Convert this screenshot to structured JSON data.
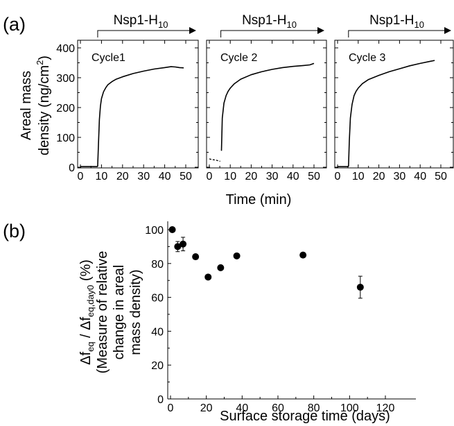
{
  "panel_labels": [
    "(a)",
    "(b)"
  ],
  "chart_data": [
    {
      "type": "line",
      "panel": "(a)",
      "xlabel": "Time (min)",
      "ylabel_line1": "Areal mass",
      "ylabel_line2_base": "density (ng/cm",
      "ylabel_line2_sup": "2",
      "ylabel_line2_end": ")",
      "ylim": [
        0,
        400
      ],
      "yticks": [
        "0",
        "100",
        "200",
        "300",
        "400"
      ],
      "xlim": [
        0,
        50
      ],
      "xticks": [
        "0",
        "10",
        "20",
        "30",
        "40",
        "50"
      ],
      "injection_label": {
        "base": "Nsp1-H",
        "sub": "10"
      },
      "subplots": [
        {
          "name": "Cycle1",
          "baseline": [
            [
              0,
              2
            ],
            [
              8.2,
              2
            ]
          ],
          "curve": [
            [
              8.2,
              2
            ],
            [
              8.6,
              80
            ],
            [
              9.0,
              160
            ],
            [
              9.5,
              205
            ],
            [
              10,
              230
            ],
            [
              11,
              253
            ],
            [
              12,
              266
            ],
            [
              13,
              276
            ],
            [
              15,
              287
            ],
            [
              17,
              295
            ],
            [
              20,
              303
            ],
            [
              25,
              314
            ],
            [
              30,
              322
            ],
            [
              35,
              329
            ],
            [
              40,
              334
            ],
            [
              43,
              337
            ],
            [
              45,
              336
            ],
            [
              47,
              334
            ],
            [
              49,
              333
            ]
          ]
        },
        {
          "name": "Cycle 2",
          "baseline": [
            [
              0,
              28
            ],
            [
              1,
              26
            ],
            [
              2,
              25
            ],
            [
              3,
              24
            ],
            [
              4,
              22
            ],
            [
              5,
              20
            ],
            [
              5.2,
              20
            ]
          ],
          "curve": [
            [
              5.8,
              55
            ],
            [
              6.2,
              165
            ],
            [
              7,
              215
            ],
            [
              8,
              240
            ],
            [
              9,
              255
            ],
            [
              10,
              265
            ],
            [
              12,
              280
            ],
            [
              15,
              295
            ],
            [
              20,
              310
            ],
            [
              25,
              320
            ],
            [
              30,
              328
            ],
            [
              35,
              334
            ],
            [
              40,
              338
            ],
            [
              45,
              341
            ],
            [
              48,
              343
            ],
            [
              50,
              348
            ]
          ]
        },
        {
          "name": "Cycle 3",
          "baseline": [
            [
              0,
              2
            ],
            [
              5.3,
              2
            ]
          ],
          "curve": [
            [
              5.3,
              2
            ],
            [
              5.7,
              90
            ],
            [
              6.2,
              165
            ],
            [
              7,
              210
            ],
            [
              8,
              240
            ],
            [
              9,
              255
            ],
            [
              10,
              265
            ],
            [
              12,
              280
            ],
            [
              15,
              294
            ],
            [
              20,
              308
            ],
            [
              25,
              320
            ],
            [
              30,
              330
            ],
            [
              35,
              340
            ],
            [
              40,
              348
            ],
            [
              45,
              355
            ],
            [
              47,
              358
            ]
          ]
        }
      ]
    },
    {
      "type": "scatter",
      "panel": "(b)",
      "xlabel": "Surface storage time (days)",
      "ylabel_line1_parts": [
        "Δf",
        "eq",
        " / Δf",
        "eq,day0",
        " (%)"
      ],
      "ylabel_line2": "(Measure of relative",
      "ylabel_line3": "change in areal",
      "ylabel_line4": "mass density)",
      "xlim": [
        0,
        120
      ],
      "ylim": [
        0,
        100
      ],
      "xticks": [
        "0",
        "20",
        "40",
        "60",
        "80",
        "100",
        "120"
      ],
      "yticks": [
        "0",
        "20",
        "40",
        "60",
        "80",
        "100"
      ],
      "points": [
        {
          "x": 1,
          "y": 100,
          "err": 0
        },
        {
          "x": 4,
          "y": 90,
          "err": 3
        },
        {
          "x": 7,
          "y": 91.5,
          "err": 4
        },
        {
          "x": 14,
          "y": 84,
          "err": 0
        },
        {
          "x": 21,
          "y": 72,
          "err": 0
        },
        {
          "x": 28,
          "y": 77.5,
          "err": 0
        },
        {
          "x": 37,
          "y": 84.5,
          "err": 0
        },
        {
          "x": 74,
          "y": 85,
          "err": 0
        },
        {
          "x": 106,
          "y": 66,
          "err": 6.5
        }
      ]
    }
  ]
}
